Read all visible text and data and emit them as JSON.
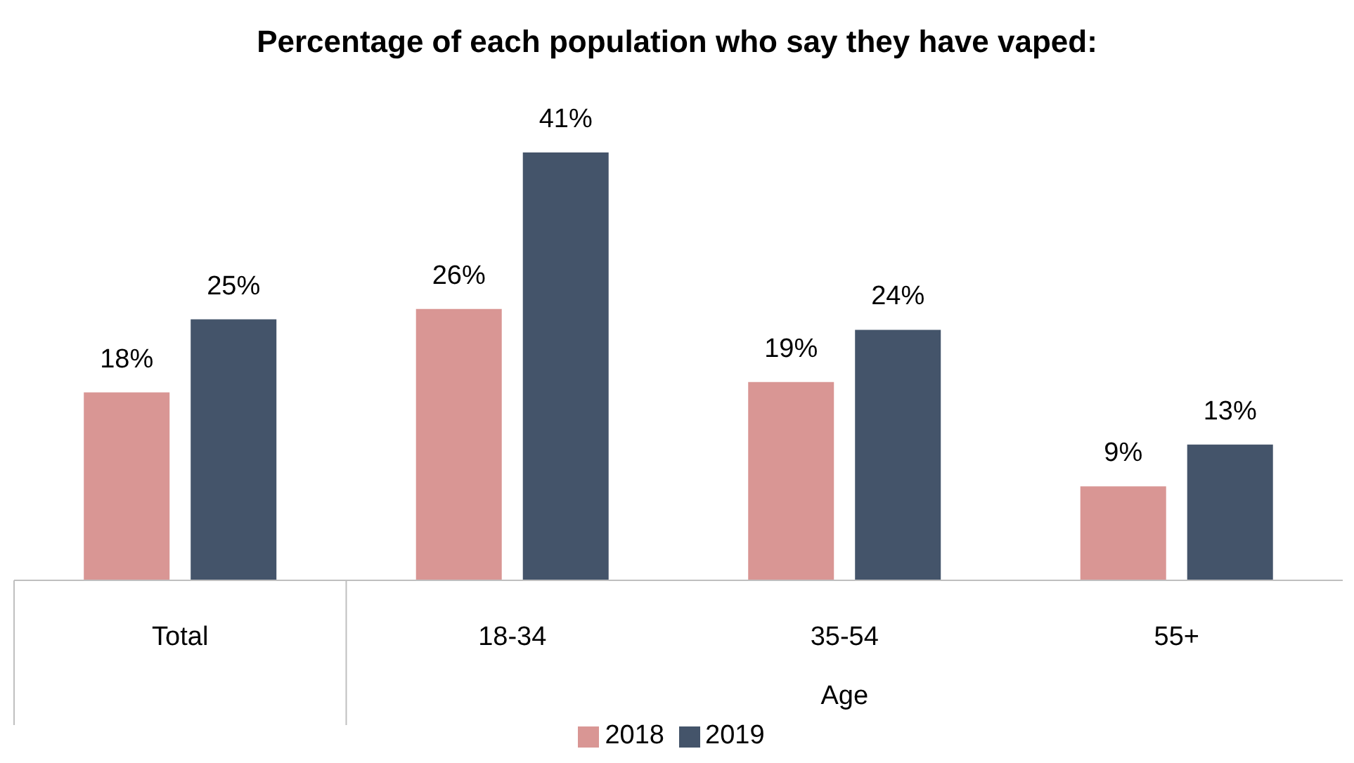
{
  "chart_data": {
    "type": "bar",
    "title": "Percentage of each population who say they have vaped:",
    "categories": [
      "Total",
      "18-34",
      "35-54",
      "55+"
    ],
    "annotations": [
      "Age"
    ],
    "series": [
      {
        "name": "2018",
        "color": "#d99694",
        "values": [
          18,
          26,
          19,
          9
        ],
        "value_labels": [
          "18%",
          "26%",
          "19%",
          "9%"
        ]
      },
      {
        "name": "2019",
        "color": "#44546a",
        "values": [
          25,
          41,
          24,
          13
        ],
        "value_labels": [
          "25%",
          "41%",
          "24%",
          "13%"
        ]
      }
    ],
    "legend": "bottom"
  }
}
